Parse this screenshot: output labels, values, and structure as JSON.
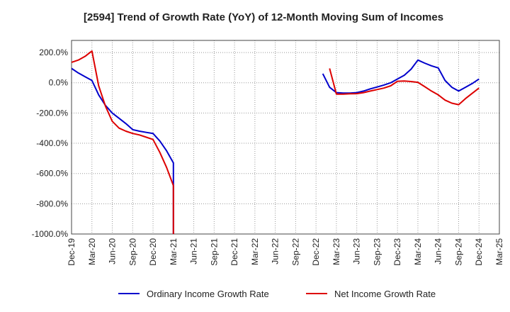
{
  "chart_data": {
    "type": "line",
    "title": "[2594]  Trend of Growth Rate (YoY) of 12-Month Moving Sum of Incomes",
    "xlabel": "",
    "ylabel": "",
    "ylim": [
      -1000,
      280
    ],
    "yticks": [
      200,
      0,
      -200,
      -400,
      -600,
      -800,
      -1000
    ],
    "ytick_labels": [
      "200.0%",
      "0.0%",
      "-200.0%",
      "-400.0%",
      "-600.0%",
      "-800.0%",
      "-1000.0%"
    ],
    "xticks": [
      "Dec-19",
      "Mar-20",
      "Jun-20",
      "Sep-20",
      "Dec-20",
      "Mar-21",
      "Jun-21",
      "Sep-21",
      "Dec-21",
      "Mar-22",
      "Jun-22",
      "Sep-22",
      "Dec-22",
      "Mar-23",
      "Jun-23",
      "Sep-23",
      "Dec-23",
      "Mar-24",
      "Jun-24",
      "Sep-24",
      "Dec-24",
      "Mar-25"
    ],
    "x_months": [
      "Dec-19",
      "Jan-20",
      "Feb-20",
      "Mar-20",
      "Apr-20",
      "May-20",
      "Jun-20",
      "Jul-20",
      "Aug-20",
      "Sep-20",
      "Oct-20",
      "Nov-20",
      "Dec-20",
      "Jan-21",
      "Feb-21",
      "Mar-21",
      "Apr-21",
      "May-21",
      "Jun-21",
      "Jul-21",
      "Aug-21",
      "Sep-21",
      "Oct-21",
      "Nov-21",
      "Dec-21",
      "Jan-22",
      "Feb-22",
      "Mar-22",
      "Apr-22",
      "May-22",
      "Jun-22",
      "Jul-22",
      "Aug-22",
      "Sep-22",
      "Oct-22",
      "Nov-22",
      "Dec-22",
      "Jan-23",
      "Feb-23",
      "Mar-23",
      "Apr-23",
      "May-23",
      "Jun-23",
      "Jul-23",
      "Aug-23",
      "Sep-23",
      "Oct-23",
      "Nov-23",
      "Dec-23",
      "Jan-24",
      "Feb-24",
      "Mar-24",
      "Apr-24",
      "May-24",
      "Jun-24",
      "Jul-24",
      "Aug-24",
      "Sep-24",
      "Oct-24",
      "Nov-24",
      "Dec-24",
      "Jan-25",
      "Feb-25",
      "Mar-25"
    ],
    "grid": true,
    "legend_position": "bottom",
    "series": [
      {
        "name": "Ordinary Income Growth Rate",
        "color": "#0000cc",
        "points": [
          [
            "Dec-19",
            95
          ],
          [
            "Jan-20",
            65
          ],
          [
            "Feb-20",
            40
          ],
          [
            "Mar-20",
            15
          ],
          [
            "Apr-20",
            -80
          ],
          [
            "May-20",
            -150
          ],
          [
            "Jun-20",
            -200
          ],
          [
            "Jul-20",
            -235
          ],
          [
            "Aug-20",
            -270
          ],
          [
            "Sep-20",
            -310
          ],
          [
            "Oct-20",
            -320
          ],
          [
            "Nov-20",
            -328
          ],
          [
            "Dec-20",
            -335
          ],
          [
            "Jan-21",
            -385
          ],
          [
            "Feb-21",
            -450
          ],
          [
            "Mar-21",
            -530
          ],
          [
            "Mar-21",
            -1000
          ],
          [
            null,
            null
          ],
          [
            "Jan-23",
            60
          ],
          [
            "Feb-23",
            -30
          ],
          [
            "Mar-23",
            -65
          ],
          [
            "Apr-23",
            -68
          ],
          [
            "May-23",
            -68
          ],
          [
            "Jun-23",
            -65
          ],
          [
            "Jul-23",
            -55
          ],
          [
            "Aug-23",
            -40
          ],
          [
            "Sep-23",
            -28
          ],
          [
            "Oct-23",
            -15
          ],
          [
            "Nov-23",
            0
          ],
          [
            "Dec-23",
            25
          ],
          [
            "Jan-24",
            50
          ],
          [
            "Feb-24",
            90
          ],
          [
            "Mar-24",
            150
          ],
          [
            "Apr-24",
            130
          ],
          [
            "May-24",
            112
          ],
          [
            "Jun-24",
            98
          ],
          [
            "Jul-24",
            15
          ],
          [
            "Aug-24",
            -30
          ],
          [
            "Sep-24",
            -55
          ],
          [
            "Oct-24",
            -30
          ],
          [
            "Nov-24",
            -5
          ],
          [
            "Dec-24",
            25
          ]
        ]
      },
      {
        "name": "Net Income Growth Rate",
        "color": "#dd0000",
        "points": [
          [
            "Dec-19",
            135
          ],
          [
            "Jan-20",
            150
          ],
          [
            "Feb-20",
            175
          ],
          [
            "Mar-20",
            210
          ],
          [
            "Apr-20",
            -20
          ],
          [
            "May-20",
            -155
          ],
          [
            "Jun-20",
            -255
          ],
          [
            "Jul-20",
            -300
          ],
          [
            "Aug-20",
            -320
          ],
          [
            "Sep-20",
            -335
          ],
          [
            "Oct-20",
            -345
          ],
          [
            "Nov-20",
            -360
          ],
          [
            "Dec-20",
            -375
          ],
          [
            "Jan-21",
            -460
          ],
          [
            "Feb-21",
            -560
          ],
          [
            "Mar-21",
            -680
          ],
          [
            "Mar-21",
            -1000
          ],
          [
            null,
            null
          ],
          [
            "Feb-23",
            95
          ],
          [
            "Mar-23",
            -75
          ],
          [
            "Apr-23",
            -75
          ],
          [
            "May-23",
            -73
          ],
          [
            "Jun-23",
            -72
          ],
          [
            "Jul-23",
            -65
          ],
          [
            "Aug-23",
            -55
          ],
          [
            "Sep-23",
            -45
          ],
          [
            "Oct-23",
            -35
          ],
          [
            "Nov-23",
            -20
          ],
          [
            "Dec-23",
            10
          ],
          [
            "Jan-24",
            12
          ],
          [
            "Feb-24",
            8
          ],
          [
            "Mar-24",
            3
          ],
          [
            "Apr-24",
            -25
          ],
          [
            "May-24",
            -55
          ],
          [
            "Jun-24",
            -80
          ],
          [
            "Jul-24",
            -115
          ],
          [
            "Aug-24",
            -135
          ],
          [
            "Sep-24",
            -145
          ],
          [
            "Oct-24",
            -105
          ],
          [
            "Nov-24",
            -70
          ],
          [
            "Dec-24",
            -35
          ]
        ]
      }
    ]
  }
}
